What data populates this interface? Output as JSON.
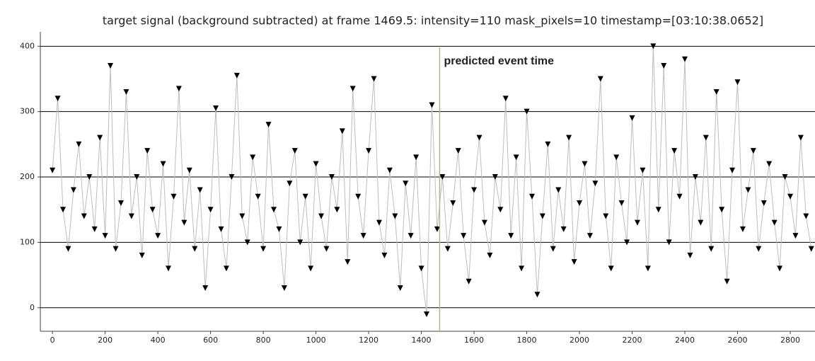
{
  "chart_data": {
    "type": "line",
    "marker": "v",
    "title": "target signal (background subtracted) at frame 1469.5: intensity=110 mask_pixels=10 timestamp=[03:10:38.0652]",
    "x": [
      0,
      20,
      40,
      60,
      80,
      100,
      120,
      140,
      160,
      180,
      200,
      220,
      240,
      260,
      280,
      300,
      320,
      340,
      360,
      380,
      400,
      420,
      440,
      460,
      480,
      500,
      520,
      540,
      560,
      580,
      600,
      620,
      640,
      660,
      680,
      700,
      720,
      740,
      760,
      780,
      800,
      820,
      840,
      860,
      880,
      900,
      920,
      940,
      960,
      980,
      1000,
      1020,
      1040,
      1060,
      1080,
      1100,
      1120,
      1140,
      1160,
      1180,
      1200,
      1220,
      1240,
      1260,
      1280,
      1300,
      1320,
      1340,
      1360,
      1380,
      1400,
      1420,
      1440,
      1460,
      1480,
      1500,
      1520,
      1540,
      1560,
      1580,
      1600,
      1620,
      1640,
      1660,
      1680,
      1700,
      1720,
      1740,
      1760,
      1780,
      1800,
      1820,
      1840,
      1860,
      1880,
      1900,
      1920,
      1940,
      1960,
      1980,
      2000,
      2020,
      2040,
      2060,
      2080,
      2100,
      2120,
      2140,
      2160,
      2180,
      2200,
      2220,
      2240,
      2260,
      2280,
      2300,
      2320,
      2340,
      2360,
      2380,
      2400,
      2420,
      2440,
      2460,
      2480,
      2500,
      2520,
      2540,
      2560,
      2580,
      2600,
      2620,
      2640,
      2660,
      2680,
      2700,
      2720,
      2740,
      2760,
      2780,
      2800,
      2820,
      2840,
      2860,
      2880
    ],
    "values": [
      210,
      320,
      150,
      90,
      180,
      250,
      140,
      200,
      120,
      260,
      110,
      370,
      90,
      160,
      330,
      140,
      200,
      80,
      240,
      150,
      110,
      220,
      60,
      170,
      335,
      130,
      210,
      90,
      180,
      30,
      150,
      305,
      120,
      60,
      200,
      355,
      140,
      100,
      230,
      170,
      90,
      280,
      150,
      120,
      30,
      190,
      240,
      100,
      170,
      60,
      220,
      140,
      90,
      200,
      150,
      270,
      70,
      335,
      170,
      110,
      240,
      350,
      130,
      80,
      210,
      140,
      30,
      190,
      110,
      230,
      60,
      -10,
      310,
      120,
      200,
      90,
      160,
      240,
      110,
      40,
      180,
      260,
      130,
      80,
      200,
      150,
      320,
      110,
      230,
      60,
      300,
      170,
      20,
      140,
      250,
      90,
      180,
      120,
      260,
      70,
      160,
      220,
      110,
      190,
      350,
      140,
      60,
      230,
      160,
      100,
      290,
      130,
      210,
      60,
      400,
      150,
      370,
      100,
      240,
      170,
      380,
      80,
      200,
      130,
      260,
      90,
      330,
      150,
      40,
      210,
      345,
      120,
      180,
      240,
      90,
      160,
      220,
      130,
      60,
      200,
      170,
      110,
      260,
      140,
      90
    ],
    "color": "#000000",
    "line_color": "#bdbdbd",
    "xlim": [
      -46,
      2894
    ],
    "ylim": [
      -36,
      422
    ],
    "xticks": [
      0,
      200,
      400,
      600,
      800,
      1000,
      1200,
      1400,
      1600,
      1800,
      2000,
      2200,
      2400,
      2600,
      2800
    ],
    "yticks": [
      0,
      100,
      200,
      300,
      400
    ],
    "grid": true,
    "vline": {
      "x": 1469.5,
      "color": "#b8b48a",
      "label": "predicted event time"
    }
  }
}
